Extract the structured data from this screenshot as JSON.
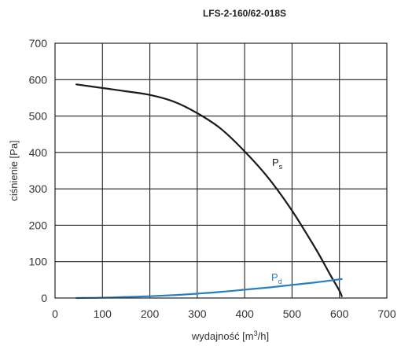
{
  "chart_data": {
    "type": "line",
    "title": "LFS-2-160/62-018S",
    "xlabel": {
      "text": "wydajność [m",
      "sup": "3",
      "after": "/h]"
    },
    "ylabel": "ciśnienie [Pa]",
    "xlim": [
      0,
      700
    ],
    "ylim": [
      0,
      700
    ],
    "xticks": [
      0,
      100,
      200,
      300,
      400,
      500,
      600,
      700
    ],
    "yticks": [
      0,
      100,
      200,
      300,
      400,
      500,
      600,
      700
    ],
    "grid": true,
    "series": [
      {
        "name": "Ps",
        "label_main": "P",
        "label_sub": "s",
        "color": "#1a1a1a",
        "x": [
          45,
          100,
          150,
          200,
          250,
          300,
          350,
          400,
          450,
          500,
          550,
          580,
          600,
          605
        ],
        "y": [
          587,
          577,
          568,
          558,
          540,
          508,
          465,
          403,
          330,
          240,
          135,
          65,
          20,
          5
        ]
      },
      {
        "name": "Pd",
        "label_main": "P",
        "label_sub": "d",
        "color": "#2a7fc1",
        "x": [
          45,
          100,
          150,
          200,
          250,
          300,
          350,
          400,
          450,
          500,
          550,
          605
        ],
        "y": [
          0,
          1,
          3,
          5,
          8,
          12,
          17,
          23,
          29,
          36,
          43,
          52
        ]
      }
    ]
  }
}
